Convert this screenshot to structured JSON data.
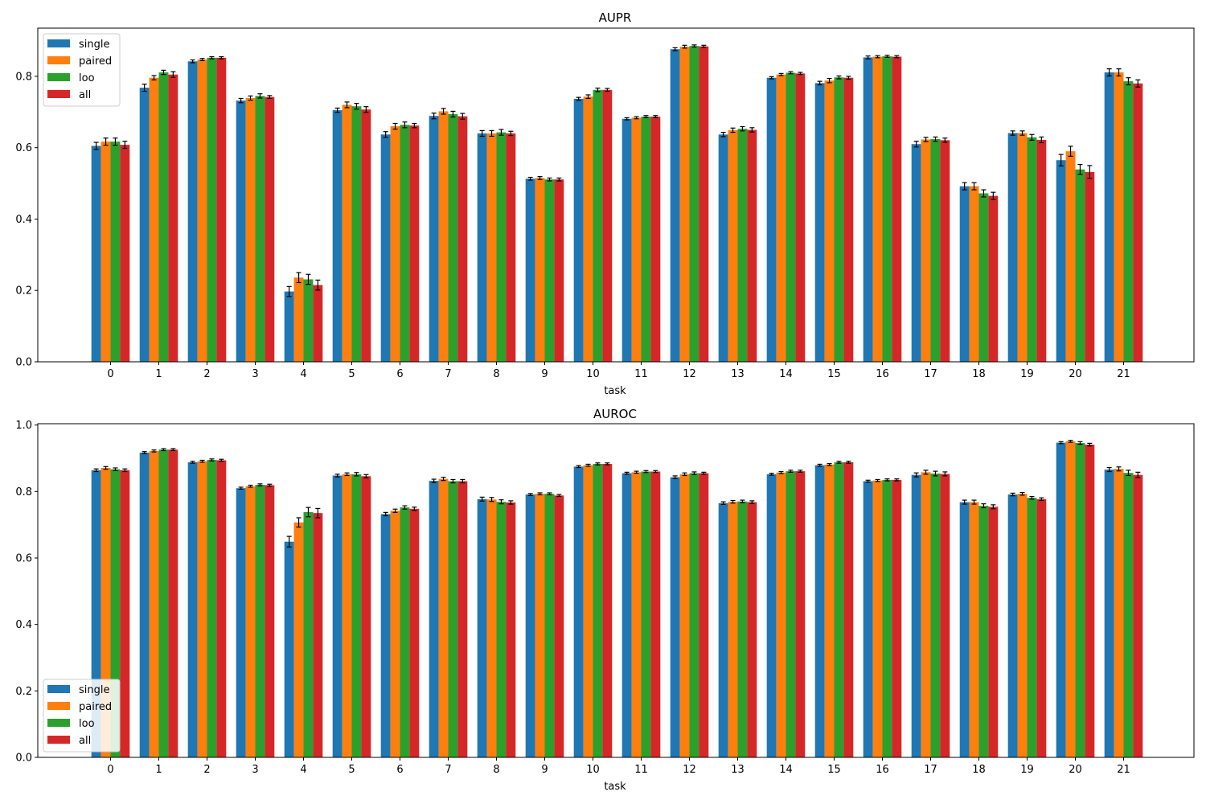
{
  "chart_data": [
    {
      "type": "bar",
      "title": "AUPR",
      "xlabel": "task",
      "ylabel": "",
      "ylim": [
        0,
        0.935
      ],
      "yticks": [
        "0.0",
        "0.2",
        "0.4",
        "0.6",
        "0.8"
      ],
      "legend_position": "top-left",
      "grid": false,
      "error_bars": true,
      "categories": [
        "0",
        "1",
        "2",
        "3",
        "4",
        "5",
        "6",
        "7",
        "8",
        "9",
        "10",
        "11",
        "12",
        "13",
        "14",
        "15",
        "16",
        "17",
        "18",
        "19",
        "20",
        "21"
      ],
      "series": [
        {
          "name": "single",
          "color": "#1f77b4",
          "values": [
            0.605,
            0.768,
            0.842,
            0.732,
            0.197,
            0.705,
            0.637,
            0.689,
            0.64,
            0.513,
            0.737,
            0.681,
            0.876,
            0.637,
            0.796,
            0.781,
            0.853,
            0.61,
            0.492,
            0.641,
            0.565,
            0.811
          ],
          "errors": [
            0.01,
            0.01,
            0.004,
            0.006,
            0.014,
            0.006,
            0.008,
            0.008,
            0.008,
            0.004,
            0.004,
            0.003,
            0.004,
            0.006,
            0.003,
            0.005,
            0.004,
            0.008,
            0.01,
            0.006,
            0.016,
            0.01
          ]
        },
        {
          "name": "paired",
          "color": "#ff7f0e",
          "values": [
            0.617,
            0.796,
            0.847,
            0.739,
            0.236,
            0.72,
            0.66,
            0.702,
            0.64,
            0.515,
            0.743,
            0.684,
            0.883,
            0.649,
            0.805,
            0.788,
            0.855,
            0.623,
            0.492,
            0.641,
            0.59,
            0.811
          ],
          "errors": [
            0.01,
            0.006,
            0.003,
            0.006,
            0.014,
            0.008,
            0.008,
            0.008,
            0.008,
            0.004,
            0.005,
            0.003,
            0.004,
            0.006,
            0.003,
            0.006,
            0.003,
            0.006,
            0.01,
            0.006,
            0.014,
            0.01
          ]
        },
        {
          "name": "loo",
          "color": "#2ca02c",
          "values": [
            0.617,
            0.811,
            0.852,
            0.745,
            0.231,
            0.716,
            0.664,
            0.694,
            0.643,
            0.511,
            0.762,
            0.687,
            0.885,
            0.653,
            0.81,
            0.797,
            0.856,
            0.624,
            0.472,
            0.629,
            0.539,
            0.786
          ],
          "errors": [
            0.01,
            0.006,
            0.003,
            0.006,
            0.014,
            0.008,
            0.008,
            0.008,
            0.008,
            0.004,
            0.005,
            0.003,
            0.003,
            0.006,
            0.003,
            0.004,
            0.003,
            0.006,
            0.01,
            0.008,
            0.014,
            0.01
          ]
        },
        {
          "name": "all",
          "color": "#d62728",
          "values": [
            0.608,
            0.805,
            0.852,
            0.742,
            0.215,
            0.707,
            0.662,
            0.688,
            0.64,
            0.511,
            0.762,
            0.687,
            0.884,
            0.65,
            0.808,
            0.796,
            0.855,
            0.621,
            0.465,
            0.622,
            0.532,
            0.78
          ],
          "errors": [
            0.01,
            0.008,
            0.003,
            0.004,
            0.014,
            0.008,
            0.006,
            0.008,
            0.006,
            0.004,
            0.004,
            0.003,
            0.003,
            0.006,
            0.003,
            0.004,
            0.003,
            0.006,
            0.01,
            0.008,
            0.018,
            0.01
          ]
        }
      ]
    },
    {
      "type": "bar",
      "title": "AUROC",
      "xlabel": "task",
      "ylabel": "",
      "ylim": [
        0,
        1.004
      ],
      "yticks": [
        "0.0",
        "0.2",
        "0.4",
        "0.6",
        "0.8",
        "1.0"
      ],
      "legend_position": "bottom-left",
      "grid": false,
      "error_bars": true,
      "categories": [
        "0",
        "1",
        "2",
        "3",
        "4",
        "5",
        "6",
        "7",
        "8",
        "9",
        "10",
        "11",
        "12",
        "13",
        "14",
        "15",
        "16",
        "17",
        "18",
        "19",
        "20",
        "21"
      ],
      "series": [
        {
          "name": "single",
          "color": "#1f77b4",
          "values": [
            0.864,
            0.917,
            0.888,
            0.81,
            0.649,
            0.848,
            0.732,
            0.832,
            0.777,
            0.791,
            0.875,
            0.855,
            0.843,
            0.765,
            0.852,
            0.879,
            0.831,
            0.85,
            0.768,
            0.791,
            0.947,
            0.866
          ],
          "errors": [
            0.004,
            0.003,
            0.003,
            0.003,
            0.016,
            0.004,
            0.005,
            0.005,
            0.006,
            0.003,
            0.003,
            0.003,
            0.004,
            0.004,
            0.003,
            0.003,
            0.003,
            0.006,
            0.006,
            0.004,
            0.003,
            0.006
          ]
        },
        {
          "name": "paired",
          "color": "#ff7f0e",
          "values": [
            0.871,
            0.922,
            0.891,
            0.816,
            0.707,
            0.852,
            0.742,
            0.838,
            0.776,
            0.793,
            0.879,
            0.858,
            0.852,
            0.769,
            0.857,
            0.881,
            0.833,
            0.858,
            0.768,
            0.793,
            0.951,
            0.868
          ],
          "errors": [
            0.004,
            0.003,
            0.003,
            0.003,
            0.014,
            0.004,
            0.005,
            0.005,
            0.006,
            0.003,
            0.003,
            0.003,
            0.004,
            0.004,
            0.003,
            0.003,
            0.003,
            0.006,
            0.006,
            0.004,
            0.003,
            0.006
          ]
        },
        {
          "name": "loo",
          "color": "#2ca02c",
          "values": [
            0.867,
            0.926,
            0.895,
            0.82,
            0.738,
            0.852,
            0.752,
            0.831,
            0.769,
            0.793,
            0.883,
            0.86,
            0.855,
            0.77,
            0.861,
            0.888,
            0.835,
            0.854,
            0.757,
            0.781,
            0.946,
            0.856
          ],
          "errors": [
            0.004,
            0.003,
            0.003,
            0.003,
            0.014,
            0.005,
            0.005,
            0.005,
            0.006,
            0.003,
            0.003,
            0.003,
            0.004,
            0.004,
            0.003,
            0.003,
            0.003,
            0.007,
            0.006,
            0.004,
            0.004,
            0.008
          ]
        },
        {
          "name": "all",
          "color": "#d62728",
          "values": [
            0.864,
            0.926,
            0.894,
            0.819,
            0.735,
            0.846,
            0.748,
            0.831,
            0.767,
            0.788,
            0.883,
            0.86,
            0.855,
            0.768,
            0.861,
            0.888,
            0.835,
            0.853,
            0.754,
            0.777,
            0.941,
            0.85
          ],
          "errors": [
            0.004,
            0.003,
            0.003,
            0.003,
            0.014,
            0.005,
            0.005,
            0.005,
            0.005,
            0.003,
            0.003,
            0.003,
            0.003,
            0.004,
            0.003,
            0.003,
            0.003,
            0.006,
            0.006,
            0.004,
            0.004,
            0.008
          ]
        }
      ]
    }
  ]
}
